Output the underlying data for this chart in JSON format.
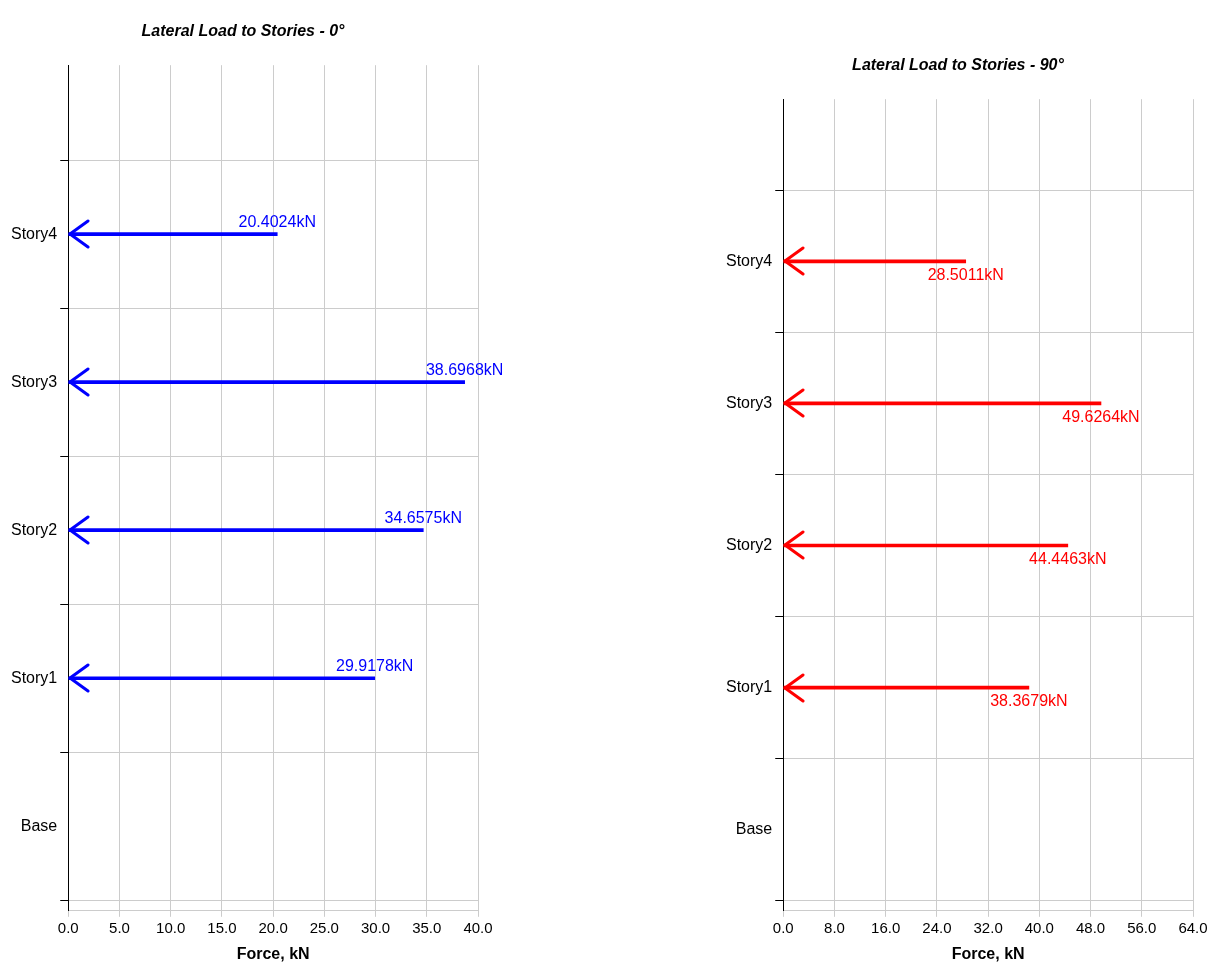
{
  "chart_data": [
    {
      "type": "bar",
      "orientation": "horizontal",
      "title": "Lateral Load to Stories - 0°",
      "xlabel": "Force, kN",
      "categories": [
        "Story4",
        "Story3",
        "Story2",
        "Story1",
        "Base"
      ],
      "series": [
        {
          "color": "#0000ff",
          "values": [
            20.4024,
            38.6968,
            34.6575,
            29.9178,
            null
          ],
          "value_labels": [
            "20.4024kN",
            "38.6968kN",
            "34.6575kN",
            "29.9178kN",
            null
          ]
        }
      ],
      "xlim": [
        0,
        40
      ],
      "xticks": [
        {
          "value": 0,
          "label": "0.0"
        },
        {
          "value": 5,
          "label": "5.0"
        },
        {
          "value": 10,
          "label": "10.0"
        },
        {
          "value": 15,
          "label": "15.0"
        },
        {
          "value": 20,
          "label": "20.0"
        },
        {
          "value": 25,
          "label": "25.0"
        },
        {
          "value": 30,
          "label": "30.0"
        },
        {
          "value": 35,
          "label": "35.0"
        },
        {
          "value": 40,
          "label": "40.0"
        }
      ],
      "grid": true,
      "legend": false
    },
    {
      "type": "bar",
      "orientation": "horizontal",
      "title": "Lateral Load to Stories - 90°",
      "xlabel": "Force, kN",
      "categories": [
        "Story4",
        "Story3",
        "Story2",
        "Story1",
        "Base"
      ],
      "series": [
        {
          "color": "#ff0000",
          "values": [
            28.5011,
            49.6264,
            44.4463,
            38.3679,
            null
          ],
          "value_labels": [
            "28.5011kN",
            "49.6264kN",
            "44.4463kN",
            "38.3679kN",
            null
          ]
        }
      ],
      "xlim": [
        0,
        64
      ],
      "xticks": [
        {
          "value": 0,
          "label": "0.0"
        },
        {
          "value": 8,
          "label": "8.0"
        },
        {
          "value": 16,
          "label": "16.0"
        },
        {
          "value": 24,
          "label": "24.0"
        },
        {
          "value": 32,
          "label": "32.0"
        },
        {
          "value": 40,
          "label": "40.0"
        },
        {
          "value": 48,
          "label": "48.0"
        },
        {
          "value": 56,
          "label": "56.0"
        },
        {
          "value": 64,
          "label": "64.0"
        }
      ],
      "grid": true,
      "legend": false
    }
  ]
}
